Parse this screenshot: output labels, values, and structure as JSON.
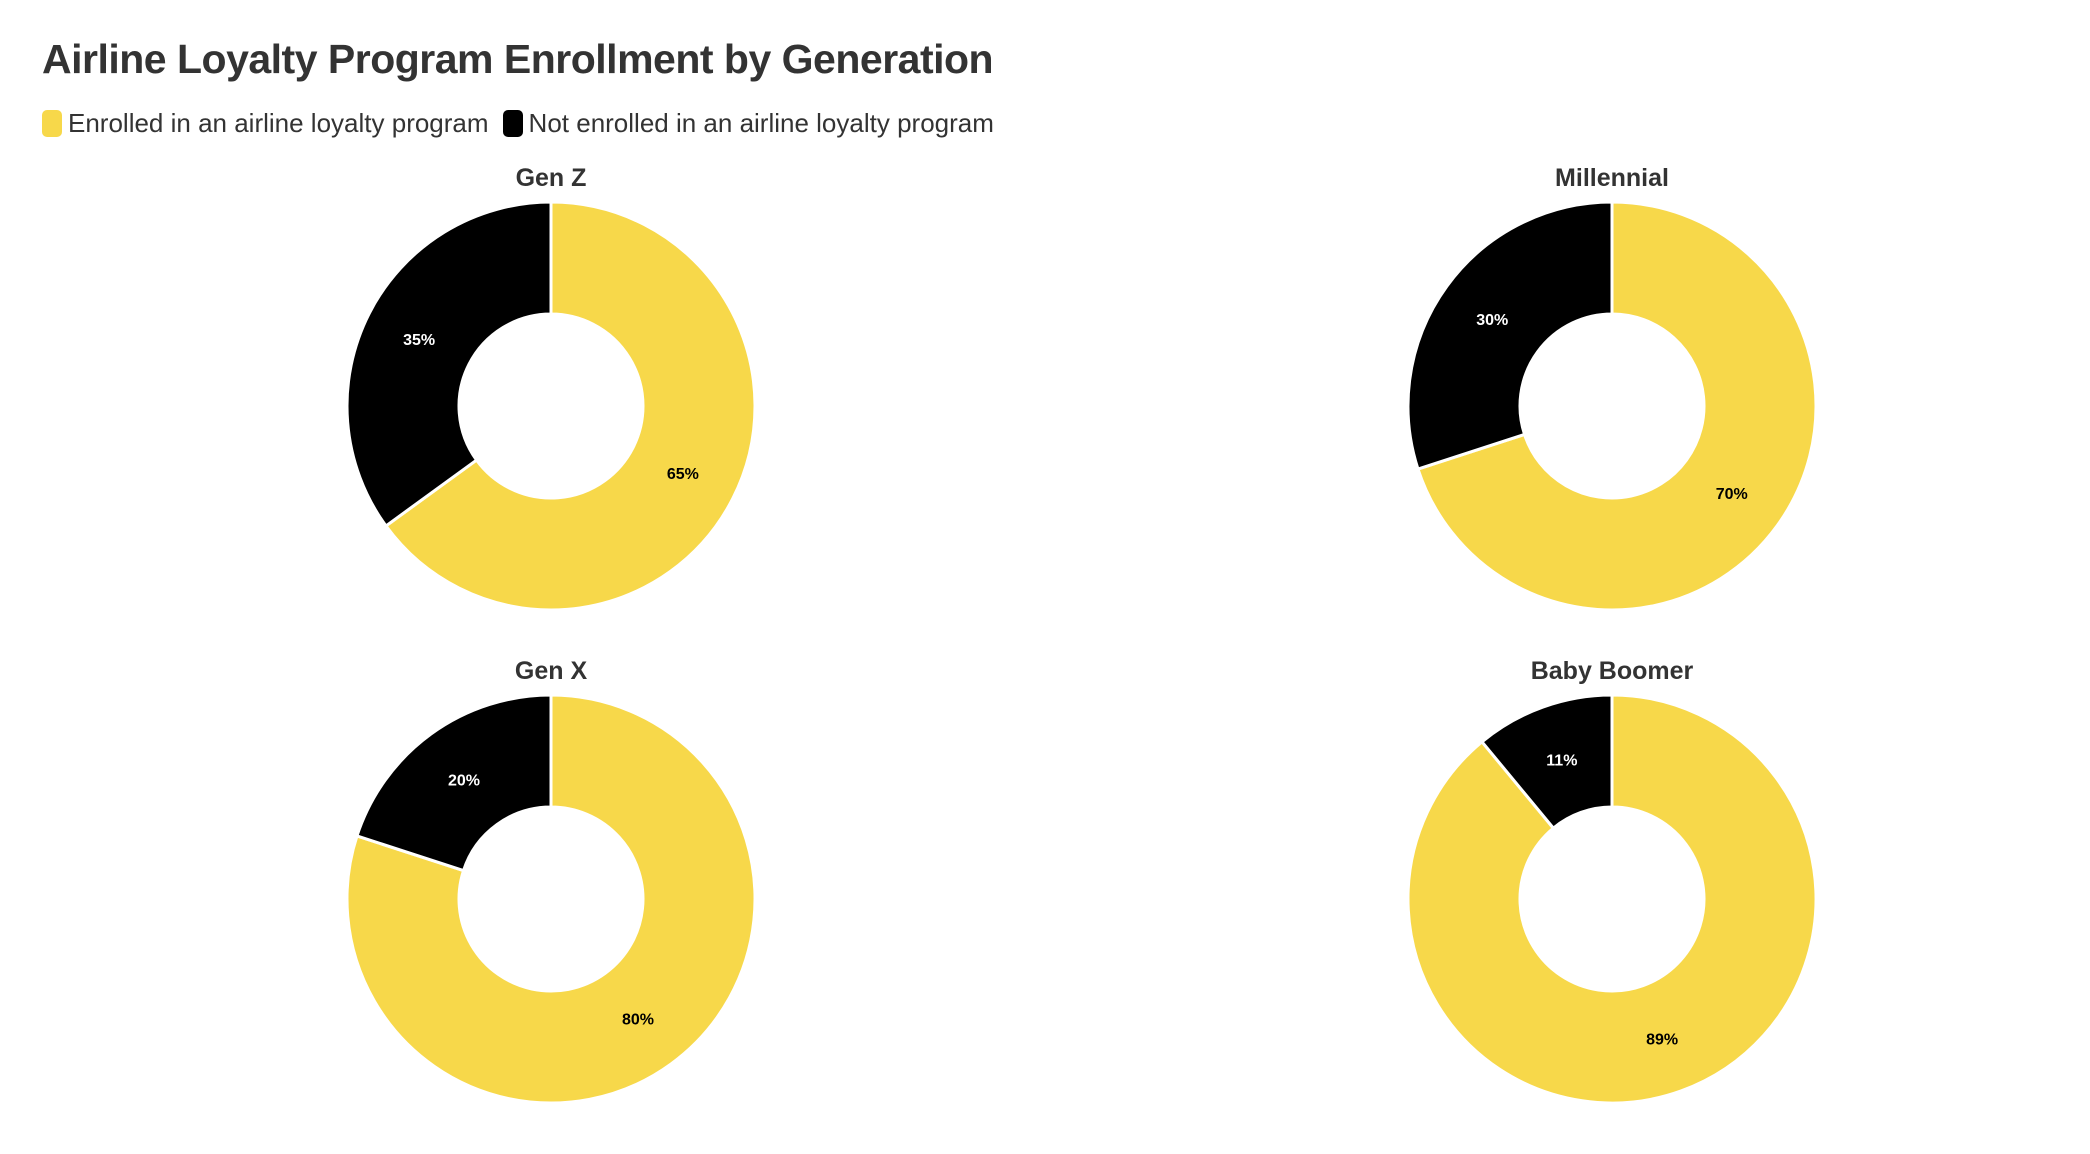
{
  "chart_data": {
    "type": "pie",
    "title": "Airline Loyalty Program Enrollment by Generation",
    "legend": [
      "Enrolled in an airline loyalty program",
      "Not enrolled in an airline loyalty program"
    ],
    "legend_position": "top-left",
    "colors": [
      "#F7D84A",
      "#000000"
    ],
    "label_colors": [
      "#000000",
      "#FFFFFF"
    ],
    "charts": [
      {
        "title": "Gen Z",
        "values": [
          65,
          35
        ],
        "labels": [
          "65%",
          "35%"
        ]
      },
      {
        "title": "Millennial",
        "values": [
          70,
          30
        ],
        "labels": [
          "70%",
          "30%"
        ]
      },
      {
        "title": "Gen X",
        "values": [
          80,
          20
        ],
        "labels": [
          "80%",
          "20%"
        ]
      },
      {
        "title": "Baby Boomer",
        "values": [
          89,
          11
        ],
        "labels": [
          "89%",
          "11%"
        ]
      }
    ]
  }
}
